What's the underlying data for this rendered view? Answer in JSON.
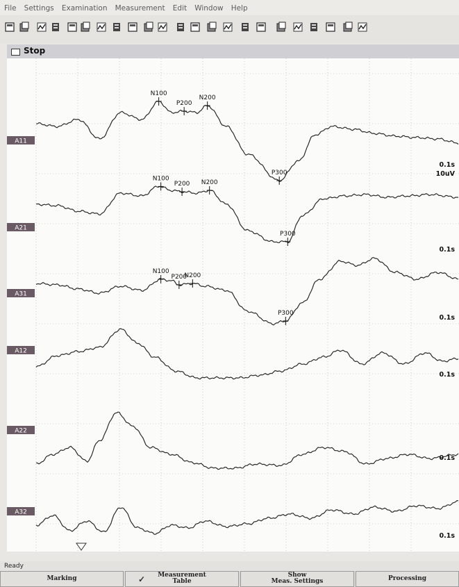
{
  "menu": [
    "File",
    "Settings",
    "Examination",
    "Measurement",
    "Edit",
    "Window",
    "Help"
  ],
  "toolbar_icons": [
    "new-icon",
    "open-icon",
    "print-icon",
    "view-icon",
    "layout-icon",
    "page-icon",
    "display-icon",
    "channel-icon",
    "pen-icon",
    "filter-icon",
    "table-icon",
    "ohm-icon",
    "montage-icon",
    "marker-icon",
    "zoom-icon",
    "compare-icon",
    "average-icon",
    "wave-icon",
    "wave2-icon",
    "wave3-icon",
    "wave4-icon",
    "panel-icon",
    "exit-icon"
  ],
  "window": {
    "title": "Stop"
  },
  "channels": [
    {
      "name": "A11",
      "scale": "0.1s",
      "amp": "10uV",
      "markers": [
        {
          "label": "N100",
          "t": 0.29
        },
        {
          "label": "P200",
          "t": 0.35
        },
        {
          "label": "N200",
          "t": 0.405
        },
        {
          "label": "P300",
          "t": 0.575
        }
      ]
    },
    {
      "name": "A21",
      "scale": "0.1s",
      "markers": [
        {
          "label": "N100",
          "t": 0.295
        },
        {
          "label": "P200",
          "t": 0.345
        },
        {
          "label": "N200",
          "t": 0.41
        },
        {
          "label": "P300",
          "t": 0.595
        }
      ]
    },
    {
      "name": "A31",
      "scale": "0.1s",
      "markers": [
        {
          "label": "N100",
          "t": 0.295
        },
        {
          "label": "P200",
          "t": 0.338
        },
        {
          "label": "N200",
          "t": 0.37
        },
        {
          "label": "P300",
          "t": 0.59
        }
      ]
    },
    {
      "name": "A12",
      "scale": "0.1s",
      "markers": []
    },
    {
      "name": "A22",
      "scale": "0.1s",
      "markers": []
    },
    {
      "name": "A32",
      "scale": "0.1s",
      "markers": []
    }
  ],
  "status": "Ready",
  "buttons": {
    "marking": "Marking",
    "measurement_table": [
      "Measurement",
      "Table"
    ],
    "show_meas": [
      "Show",
      "Meas. Settings"
    ],
    "processing": "Processing"
  }
}
